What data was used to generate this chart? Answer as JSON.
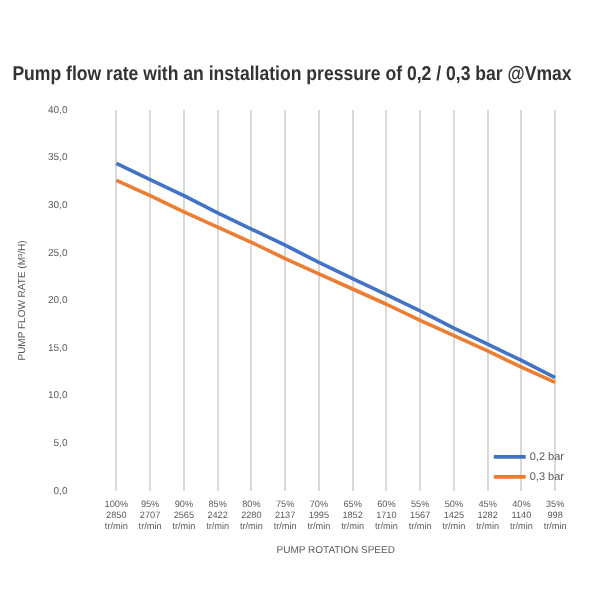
{
  "chart_data": {
    "type": "line",
    "title": "Pump flow rate with an installation pressure of 0,2 / 0,3 bar @Vmax",
    "xlabel": "PUMP ROTATION SPEED",
    "ylabel": "PUMP FLOW RATE (M³/H)",
    "categories": [
      "100%\n2850\ntr/min",
      "95%\n2707\ntr/min",
      "90%\n2565\ntr/min",
      "85%\n2422\ntr/min",
      "80%\n2280\ntr/min",
      "75%\n2137\ntr/min",
      "70%\n1995\ntr/min",
      "65%\n1852\ntr/min",
      "60%\n1710\ntr/min",
      "55%\n1567\ntr/min",
      "50%\n1425\ntr/min",
      "45%\n1282\ntr/min",
      "40%\n1140\ntr/min",
      "35%\n998\ntr/min"
    ],
    "series": [
      {
        "name": "0,2 bar",
        "color": "#4472c4",
        "values": [
          34.4,
          32.7,
          31.0,
          29.2,
          27.5,
          25.8,
          24.0,
          22.3,
          20.6,
          18.9,
          17.1,
          15.4,
          13.7,
          11.9
        ]
      },
      {
        "name": "0,3 bar",
        "color": "#ed7d31",
        "values": [
          32.6,
          31.0,
          29.3,
          27.7,
          26.1,
          24.4,
          22.8,
          21.2,
          19.6,
          17.9,
          16.3,
          14.7,
          13.0,
          11.4
        ]
      }
    ],
    "ylim": [
      0,
      40
    ],
    "yticks": [
      {
        "value": 0,
        "label": "0,0"
      },
      {
        "value": 5,
        "label": "5,0"
      },
      {
        "value": 10,
        "label": "10,0"
      },
      {
        "value": 15,
        "label": "15,0"
      },
      {
        "value": 20,
        "label": "20,0"
      },
      {
        "value": 25,
        "label": "25,0"
      },
      {
        "value": 30,
        "label": "30,0"
      },
      {
        "value": 35,
        "label": "35,0"
      },
      {
        "value": 40,
        "label": "40,0"
      }
    ],
    "grid": "x",
    "legend": "bottom right",
    "marker": "none",
    "line_style": "solid"
  }
}
